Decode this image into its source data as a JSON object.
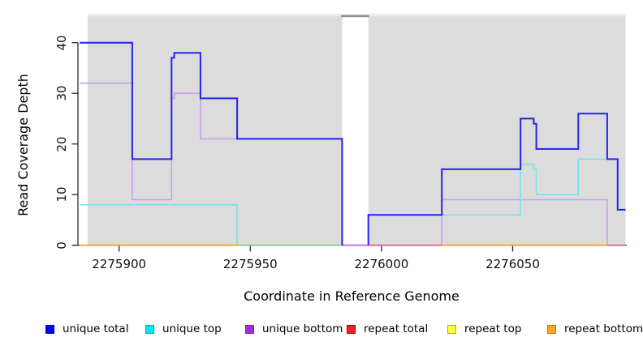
{
  "chart_data": {
    "type": "step-line",
    "title": "",
    "xlabel": "Coordinate in Reference Genome",
    "ylabel": "Read Coverage Depth",
    "x_ticks": [
      2275900,
      2275950,
      2276000,
      2276050
    ],
    "y_ticks": [
      0,
      10,
      20,
      30,
      40
    ],
    "xlim": [
      2275885,
      2276093
    ],
    "ylim": [
      0,
      45
    ],
    "grid": "off",
    "region_color": "#DCDCDC",
    "shaded_regions": [
      {
        "x1": 2275888,
        "x2": 2275985
      },
      {
        "x1": 2275995,
        "x2": 2276093
      }
    ],
    "gap_region": {
      "x1": 2275985,
      "x2": 2275995
    },
    "series": [
      {
        "name": "unique bottom",
        "color": "#C99FEA",
        "width": 1.6,
        "z": 1,
        "segments": [
          {
            "points": [
              [
                2275885,
                32
              ],
              [
                2275905,
                9
              ],
              [
                2275920,
                29
              ],
              [
                2275921,
                30
              ],
              [
                2275931,
                21
              ],
              [
                2275985,
                0
              ],
              [
                2276023,
                9
              ],
              [
                2276086,
                0
              ]
            ],
            "end": 2276093
          }
        ]
      },
      {
        "name": "unique top",
        "color": "#72E5EC",
        "width": 1.6,
        "z": 2,
        "segments": [
          {
            "points": [
              [
                2275885,
                8
              ],
              [
                2275945,
                0
              ],
              [
                2275995,
                6
              ],
              [
                2276053,
                16
              ],
              [
                2276058,
                15
              ],
              [
                2276059,
                10
              ],
              [
                2276075,
                17
              ],
              [
                2276090,
                7
              ]
            ],
            "end": 2276093
          }
        ]
      },
      {
        "name": "unique total",
        "color": "#2323ED",
        "width": 2,
        "z": 4,
        "segments": [
          {
            "points": [
              [
                2275885,
                40
              ],
              [
                2275905,
                17
              ],
              [
                2275920,
                37
              ],
              [
                2275921,
                38
              ],
              [
                2275931,
                29
              ],
              [
                2275945,
                21
              ],
              [
                2275985,
                0
              ]
            ],
            "end": 2275985
          },
          {
            "points": [
              [
                2275995,
                0
              ],
              [
                2275995,
                6
              ],
              [
                2276023,
                15
              ],
              [
                2276053,
                25
              ],
              [
                2276058,
                24
              ],
              [
                2276059,
                19
              ],
              [
                2276075,
                26
              ],
              [
                2276086,
                17
              ],
              [
                2276090,
                7
              ]
            ],
            "end": 2276093
          }
        ]
      }
    ],
    "zero_line_segments": [
      {
        "x1": 2275885,
        "x2": 2275945,
        "color": "#FFA125"
      },
      {
        "x1": 2275945,
        "x2": 2275985,
        "color": "#8DCB90"
      },
      {
        "x1": 2275985,
        "x2": 2275995,
        "color": "#B671E2"
      },
      {
        "x1": 2275995,
        "x2": 2276023,
        "color": "#E8638C"
      },
      {
        "x1": 2276023,
        "x2": 2276086,
        "color": "#FFA125"
      },
      {
        "x1": 2276086,
        "x2": 2276093,
        "color": "#E8638C"
      }
    ],
    "legend": [
      {
        "label": "unique total",
        "fill": "#0000F5",
        "border": "#0000C0"
      },
      {
        "label": "unique top",
        "fill": "#00E8F0",
        "border": "#00A8B0"
      },
      {
        "label": "unique bottom",
        "fill": "#9B30D9",
        "border": "#7A1FB0"
      },
      {
        "label": "repeat total",
        "fill": "#EE2222",
        "border": "#AA0000"
      },
      {
        "label": "repeat top",
        "fill": "#FFFF33",
        "border": "#AAAA00"
      },
      {
        "label": "repeat bottom",
        "fill": "#FFA51E",
        "border": "#C07800"
      }
    ]
  }
}
